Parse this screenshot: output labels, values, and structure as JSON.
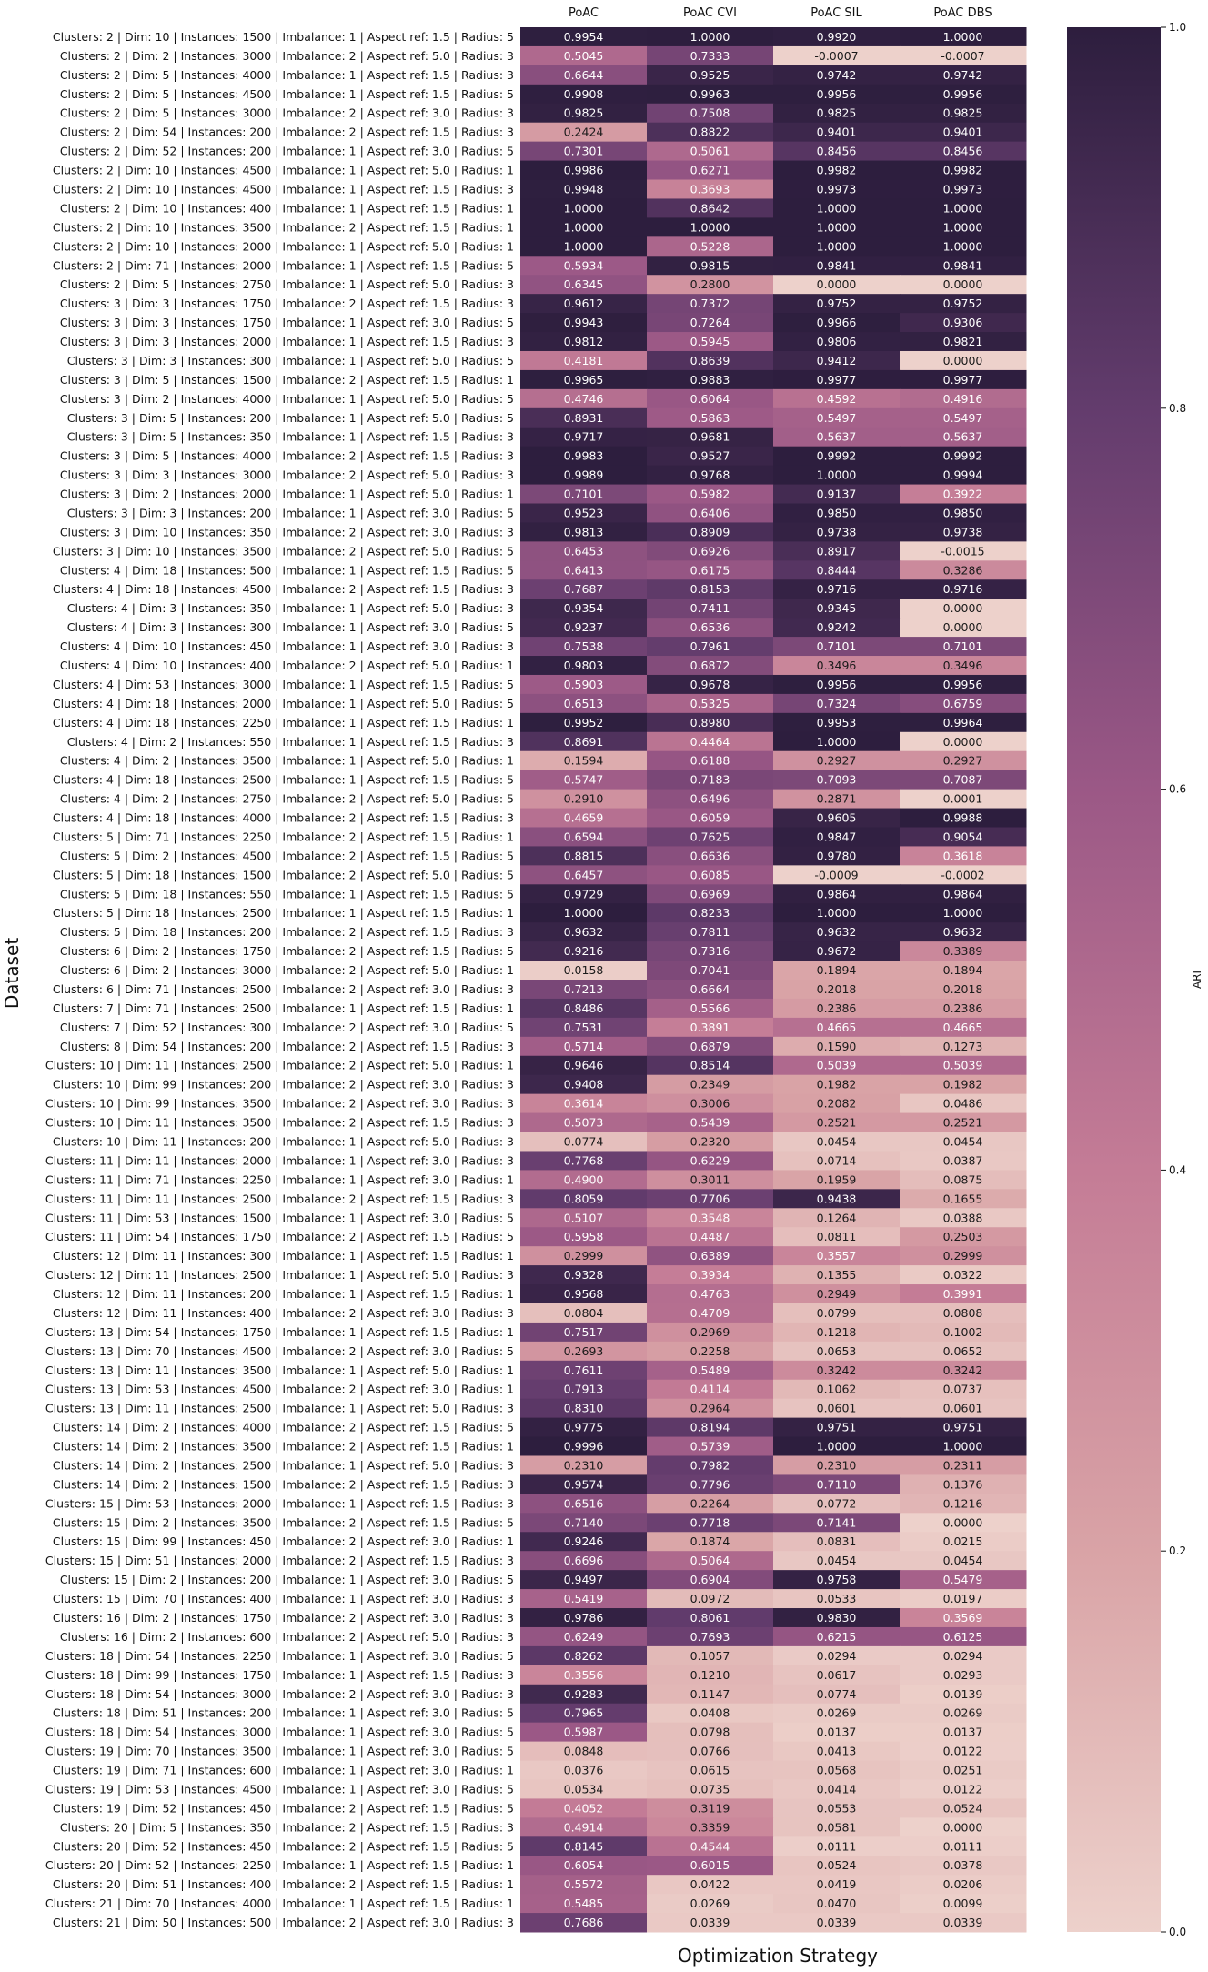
{
  "chart_data": {
    "type": "heatmap",
    "xlabel": "Optimization Strategy",
    "ylabel": "Dataset",
    "columns": [
      "PoAC",
      "PoAC CVI",
      "PoAC SIL",
      "PoAC DBS"
    ],
    "colorbar": {
      "label": "ARI",
      "range": [
        0.0,
        1.0
      ],
      "ticks": [
        "0.0",
        "0.2",
        "0.4",
        "0.6",
        "0.8",
        "1.0"
      ],
      "color_low": "#EDD1CB",
      "color_high": "#2D1E3E"
    },
    "rows": [
      "Clusters: 2 | Dim: 10 | Instances: 1500 | Imbalance: 1 | Aspect ref: 1.5 | Radius: 5",
      "Clusters: 2 | Dim: 2 | Instances: 3000 | Imbalance: 2 | Aspect ref: 5.0 | Radius: 3",
      "Clusters: 2 | Dim: 5 | Instances: 4000 | Imbalance: 1 | Aspect ref: 1.5 | Radius: 3",
      "Clusters: 2 | Dim: 5 | Instances: 4500 | Imbalance: 1 | Aspect ref: 1.5 | Radius: 5",
      "Clusters: 2 | Dim: 5 | Instances: 3000 | Imbalance: 2 | Aspect ref: 3.0 | Radius: 3",
      "Clusters: 2 | Dim: 54 | Instances: 200 | Imbalance: 2 | Aspect ref: 1.5 | Radius: 3",
      "Clusters: 2 | Dim: 52 | Instances: 200 | Imbalance: 1 | Aspect ref: 3.0 | Radius: 5",
      "Clusters: 2 | Dim: 10 | Instances: 4500 | Imbalance: 1 | Aspect ref: 5.0 | Radius: 1",
      "Clusters: 2 | Dim: 10 | Instances: 4500 | Imbalance: 1 | Aspect ref: 1.5 | Radius: 3",
      "Clusters: 2 | Dim: 10 | Instances: 400 | Imbalance: 1 | Aspect ref: 1.5 | Radius: 1",
      "Clusters: 2 | Dim: 10 | Instances: 3500 | Imbalance: 2 | Aspect ref: 1.5 | Radius: 1",
      "Clusters: 2 | Dim: 10 | Instances: 2000 | Imbalance: 1 | Aspect ref: 5.0 | Radius: 1",
      "Clusters: 2 | Dim: 71 | Instances: 2000 | Imbalance: 1 | Aspect ref: 1.5 | Radius: 5",
      "Clusters: 2 | Dim: 5 | Instances: 2750 | Imbalance: 1 | Aspect ref: 5.0 | Radius: 3",
      "Clusters: 3 | Dim: 3 | Instances: 1750 | Imbalance: 2 | Aspect ref: 1.5 | Radius: 3",
      "Clusters: 3 | Dim: 3 | Instances: 1750 | Imbalance: 1 | Aspect ref: 3.0 | Radius: 5",
      "Clusters: 3 | Dim: 3 | Instances: 2000 | Imbalance: 1 | Aspect ref: 1.5 | Radius: 3",
      "Clusters: 3 | Dim: 3 | Instances: 300 | Imbalance: 1 | Aspect ref: 5.0 | Radius: 5",
      "Clusters: 3 | Dim: 5 | Instances: 1500 | Imbalance: 2 | Aspect ref: 1.5 | Radius: 1",
      "Clusters: 3 | Dim: 2 | Instances: 4000 | Imbalance: 1 | Aspect ref: 5.0 | Radius: 5",
      "Clusters: 3 | Dim: 5 | Instances: 200 | Imbalance: 1 | Aspect ref: 5.0 | Radius: 5",
      "Clusters: 3 | Dim: 5 | Instances: 350 | Imbalance: 1 | Aspect ref: 1.5 | Radius: 3",
      "Clusters: 3 | Dim: 5 | Instances: 4000 | Imbalance: 2 | Aspect ref: 1.5 | Radius: 3",
      "Clusters: 3 | Dim: 3 | Instances: 3000 | Imbalance: 2 | Aspect ref: 5.0 | Radius: 3",
      "Clusters: 3 | Dim: 2 | Instances: 2000 | Imbalance: 1 | Aspect ref: 5.0 | Radius: 1",
      "Clusters: 3 | Dim: 3 | Instances: 200 | Imbalance: 1 | Aspect ref: 3.0 | Radius: 5",
      "Clusters: 3 | Dim: 10 | Instances: 350 | Imbalance: 2 | Aspect ref: 3.0 | Radius: 3",
      "Clusters: 3 | Dim: 10 | Instances: 3500 | Imbalance: 2 | Aspect ref: 5.0 | Radius: 5",
      "Clusters: 4 | Dim: 18 | Instances: 500 | Imbalance: 1 | Aspect ref: 1.5 | Radius: 5",
      "Clusters: 4 | Dim: 18 | Instances: 4500 | Imbalance: 2 | Aspect ref: 1.5 | Radius: 3",
      "Clusters: 4 | Dim: 3 | Instances: 350 | Imbalance: 1 | Aspect ref: 5.0 | Radius: 3",
      "Clusters: 4 | Dim: 3 | Instances: 300 | Imbalance: 1 | Aspect ref: 3.0 | Radius: 5",
      "Clusters: 4 | Dim: 10 | Instances: 450 | Imbalance: 1 | Aspect ref: 3.0 | Radius: 3",
      "Clusters: 4 | Dim: 10 | Instances: 400 | Imbalance: 2 | Aspect ref: 5.0 | Radius: 1",
      "Clusters: 4 | Dim: 53 | Instances: 3000 | Imbalance: 1 | Aspect ref: 1.5 | Radius: 5",
      "Clusters: 4 | Dim: 18 | Instances: 2000 | Imbalance: 1 | Aspect ref: 5.0 | Radius: 5",
      "Clusters: 4 | Dim: 18 | Instances: 2250 | Imbalance: 1 | Aspect ref: 1.5 | Radius: 1",
      "Clusters: 4 | Dim: 2 | Instances: 550 | Imbalance: 1 | Aspect ref: 1.5 | Radius: 3",
      "Clusters: 4 | Dim: 2 | Instances: 3500 | Imbalance: 1 | Aspect ref: 5.0 | Radius: 1",
      "Clusters: 4 | Dim: 18 | Instances: 2500 | Imbalance: 1 | Aspect ref: 1.5 | Radius: 5",
      "Clusters: 4 | Dim: 2 | Instances: 2750 | Imbalance: 2 | Aspect ref: 5.0 | Radius: 5",
      "Clusters: 4 | Dim: 18 | Instances: 4000 | Imbalance: 2 | Aspect ref: 1.5 | Radius: 3",
      "Clusters: 5 | Dim: 71 | Instances: 2250 | Imbalance: 2 | Aspect ref: 1.5 | Radius: 1",
      "Clusters: 5 | Dim: 2 | Instances: 4500 | Imbalance: 2 | Aspect ref: 1.5 | Radius: 5",
      "Clusters: 5 | Dim: 18 | Instances: 1500 | Imbalance: 2 | Aspect ref: 5.0 | Radius: 5",
      "Clusters: 5 | Dim: 18 | Instances: 550 | Imbalance: 1 | Aspect ref: 1.5 | Radius: 5",
      "Clusters: 5 | Dim: 18 | Instances: 2500 | Imbalance: 1 | Aspect ref: 1.5 | Radius: 1",
      "Clusters: 5 | Dim: 18 | Instances: 200 | Imbalance: 2 | Aspect ref: 1.5 | Radius: 3",
      "Clusters: 6 | Dim: 2 | Instances: 1750 | Imbalance: 2 | Aspect ref: 1.5 | Radius: 5",
      "Clusters: 6 | Dim: 2 | Instances: 3000 | Imbalance: 2 | Aspect ref: 5.0 | Radius: 1",
      "Clusters: 6 | Dim: 71 | Instances: 2500 | Imbalance: 2 | Aspect ref: 3.0 | Radius: 3",
      "Clusters: 7 | Dim: 71 | Instances: 2500 | Imbalance: 1 | Aspect ref: 1.5 | Radius: 1",
      "Clusters: 7 | Dim: 52 | Instances: 300 | Imbalance: 2 | Aspect ref: 3.0 | Radius: 5",
      "Clusters: 8 | Dim: 54 | Instances: 200 | Imbalance: 2 | Aspect ref: 1.5 | Radius: 3",
      "Clusters: 10 | Dim: 11 | Instances: 2500 | Imbalance: 2 | Aspect ref: 5.0 | Radius: 1",
      "Clusters: 10 | Dim: 99 | Instances: 200 | Imbalance: 2 | Aspect ref: 3.0 | Radius: 3",
      "Clusters: 10 | Dim: 99 | Instances: 3500 | Imbalance: 2 | Aspect ref: 3.0 | Radius: 3",
      "Clusters: 10 | Dim: 11 | Instances: 3500 | Imbalance: 2 | Aspect ref: 1.5 | Radius: 3",
      "Clusters: 10 | Dim: 11 | Instances: 200 | Imbalance: 1 | Aspect ref: 5.0 | Radius: 3",
      "Clusters: 11 | Dim: 11 | Instances: 2000 | Imbalance: 1 | Aspect ref: 3.0 | Radius: 3",
      "Clusters: 11 | Dim: 71 | Instances: 2250 | Imbalance: 1 | Aspect ref: 3.0 | Radius: 1",
      "Clusters: 11 | Dim: 11 | Instances: 2500 | Imbalance: 2 | Aspect ref: 1.5 | Radius: 3",
      "Clusters: 11 | Dim: 53 | Instances: 1500 | Imbalance: 1 | Aspect ref: 3.0 | Radius: 5",
      "Clusters: 11 | Dim: 54 | Instances: 1750 | Imbalance: 2 | Aspect ref: 1.5 | Radius: 5",
      "Clusters: 12 | Dim: 11 | Instances: 300 | Imbalance: 1 | Aspect ref: 1.5 | Radius: 1",
      "Clusters: 12 | Dim: 11 | Instances: 2500 | Imbalance: 1 | Aspect ref: 5.0 | Radius: 3",
      "Clusters: 12 | Dim: 11 | Instances: 200 | Imbalance: 1 | Aspect ref: 1.5 | Radius: 1",
      "Clusters: 12 | Dim: 11 | Instances: 400 | Imbalance: 2 | Aspect ref: 3.0 | Radius: 3",
      "Clusters: 13 | Dim: 54 | Instances: 1750 | Imbalance: 1 | Aspect ref: 1.5 | Radius: 1",
      "Clusters: 13 | Dim: 70 | Instances: 4500 | Imbalance: 2 | Aspect ref: 3.0 | Radius: 5",
      "Clusters: 13 | Dim: 11 | Instances: 3500 | Imbalance: 1 | Aspect ref: 5.0 | Radius: 1",
      "Clusters: 13 | Dim: 53 | Instances: 4500 | Imbalance: 2 | Aspect ref: 3.0 | Radius: 1",
      "Clusters: 13 | Dim: 11 | Instances: 2500 | Imbalance: 1 | Aspect ref: 5.0 | Radius: 3",
      "Clusters: 14 | Dim: 2 | Instances: 4000 | Imbalance: 2 | Aspect ref: 1.5 | Radius: 5",
      "Clusters: 14 | Dim: 2 | Instances: 3500 | Imbalance: 2 | Aspect ref: 1.5 | Radius: 1",
      "Clusters: 14 | Dim: 2 | Instances: 2500 | Imbalance: 1 | Aspect ref: 5.0 | Radius: 3",
      "Clusters: 14 | Dim: 2 | Instances: 1500 | Imbalance: 2 | Aspect ref: 1.5 | Radius: 3",
      "Clusters: 15 | Dim: 53 | Instances: 2000 | Imbalance: 1 | Aspect ref: 1.5 | Radius: 3",
      "Clusters: 15 | Dim: 2 | Instances: 3500 | Imbalance: 2 | Aspect ref: 1.5 | Radius: 5",
      "Clusters: 15 | Dim: 99 | Instances: 450 | Imbalance: 2 | Aspect ref: 3.0 | Radius: 1",
      "Clusters: 15 | Dim: 51 | Instances: 2000 | Imbalance: 2 | Aspect ref: 1.5 | Radius: 3",
      "Clusters: 15 | Dim: 2 | Instances: 200 | Imbalance: 1 | Aspect ref: 3.0 | Radius: 5",
      "Clusters: 15 | Dim: 70 | Instances: 400 | Imbalance: 1 | Aspect ref: 3.0 | Radius: 3",
      "Clusters: 16 | Dim: 2 | Instances: 1750 | Imbalance: 2 | Aspect ref: 3.0 | Radius: 3",
      "Clusters: 16 | Dim: 2 | Instances: 600 | Imbalance: 2 | Aspect ref: 5.0 | Radius: 3",
      "Clusters: 18 | Dim: 54 | Instances: 2250 | Imbalance: 1 | Aspect ref: 3.0 | Radius: 5",
      "Clusters: 18 | Dim: 99 | Instances: 1750 | Imbalance: 1 | Aspect ref: 1.5 | Radius: 3",
      "Clusters: 18 | Dim: 54 | Instances: 3000 | Imbalance: 2 | Aspect ref: 3.0 | Radius: 3",
      "Clusters: 18 | Dim: 51 | Instances: 200 | Imbalance: 1 | Aspect ref: 3.0 | Radius: 5",
      "Clusters: 18 | Dim: 54 | Instances: 3000 | Imbalance: 1 | Aspect ref: 3.0 | Radius: 5",
      "Clusters: 19 | Dim: 70 | Instances: 3500 | Imbalance: 1 | Aspect ref: 3.0 | Radius: 5",
      "Clusters: 19 | Dim: 71 | Instances: 600 | Imbalance: 1 | Aspect ref: 3.0 | Radius: 1",
      "Clusters: 19 | Dim: 53 | Instances: 4500 | Imbalance: 1 | Aspect ref: 3.0 | Radius: 5",
      "Clusters: 19 | Dim: 52 | Instances: 450 | Imbalance: 2 | Aspect ref: 1.5 | Radius: 5",
      "Clusters: 20 | Dim: 5 | Instances: 350 | Imbalance: 2 | Aspect ref: 1.5 | Radius: 3",
      "Clusters: 20 | Dim: 52 | Instances: 450 | Imbalance: 2 | Aspect ref: 1.5 | Radius: 5",
      "Clusters: 20 | Dim: 52 | Instances: 2250 | Imbalance: 1 | Aspect ref: 1.5 | Radius: 1",
      "Clusters: 20 | Dim: 51 | Instances: 400 | Imbalance: 2 | Aspect ref: 1.5 | Radius: 1",
      "Clusters: 21 | Dim: 70 | Instances: 4000 | Imbalance: 1 | Aspect ref: 1.5 | Radius: 1",
      "Clusters: 21 | Dim: 50 | Instances: 500 | Imbalance: 2 | Aspect ref: 3.0 | Radius: 3"
    ],
    "values": [
      [
        "0.9954",
        "1.0000",
        "0.9920",
        "1.0000"
      ],
      [
        "0.5045",
        "0.7333",
        "-0.0007",
        "-0.0007"
      ],
      [
        "0.6644",
        "0.9525",
        "0.9742",
        "0.9742"
      ],
      [
        "0.9908",
        "0.9963",
        "0.9956",
        "0.9956"
      ],
      [
        "0.9825",
        "0.7508",
        "0.9825",
        "0.9825"
      ],
      [
        "0.2424",
        "0.8822",
        "0.9401",
        "0.9401"
      ],
      [
        "0.7301",
        "0.5061",
        "0.8456",
        "0.8456"
      ],
      [
        "0.9986",
        "0.6271",
        "0.9982",
        "0.9982"
      ],
      [
        "0.9948",
        "0.3693",
        "0.9973",
        "0.9973"
      ],
      [
        "1.0000",
        "0.8642",
        "1.0000",
        "1.0000"
      ],
      [
        "1.0000",
        "1.0000",
        "1.0000",
        "1.0000"
      ],
      [
        "1.0000",
        "0.5228",
        "1.0000",
        "1.0000"
      ],
      [
        "0.5934",
        "0.9815",
        "0.9841",
        "0.9841"
      ],
      [
        "0.6345",
        "0.2800",
        "0.0000",
        "0.0000"
      ],
      [
        "0.9612",
        "0.7372",
        "0.9752",
        "0.9752"
      ],
      [
        "0.9943",
        "0.7264",
        "0.9966",
        "0.9306"
      ],
      [
        "0.9812",
        "0.5945",
        "0.9806",
        "0.9821"
      ],
      [
        "0.4181",
        "0.8639",
        "0.9412",
        "0.0000"
      ],
      [
        "0.9965",
        "0.9883",
        "0.9977",
        "0.9977"
      ],
      [
        "0.4746",
        "0.6064",
        "0.4592",
        "0.4916"
      ],
      [
        "0.8931",
        "0.5863",
        "0.5497",
        "0.5497"
      ],
      [
        "0.9717",
        "0.9681",
        "0.5637",
        "0.5637"
      ],
      [
        "0.9983",
        "0.9527",
        "0.9992",
        "0.9992"
      ],
      [
        "0.9989",
        "0.9768",
        "1.0000",
        "0.9994"
      ],
      [
        "0.7101",
        "0.5982",
        "0.9137",
        "0.3922"
      ],
      [
        "0.9523",
        "0.6406",
        "0.9850",
        "0.9850"
      ],
      [
        "0.9813",
        "0.8909",
        "0.9738",
        "0.9738"
      ],
      [
        "0.6453",
        "0.6926",
        "0.8917",
        "-0.0015"
      ],
      [
        "0.6413",
        "0.6175",
        "0.8444",
        "0.3286"
      ],
      [
        "0.7687",
        "0.8153",
        "0.9716",
        "0.9716"
      ],
      [
        "0.9354",
        "0.7411",
        "0.9345",
        "0.0000"
      ],
      [
        "0.9237",
        "0.6536",
        "0.9242",
        "0.0000"
      ],
      [
        "0.7538",
        "0.7961",
        "0.7101",
        "0.7101"
      ],
      [
        "0.9803",
        "0.6872",
        "0.3496",
        "0.3496"
      ],
      [
        "0.5903",
        "0.9678",
        "0.9956",
        "0.9956"
      ],
      [
        "0.6513",
        "0.5325",
        "0.7324",
        "0.6759"
      ],
      [
        "0.9952",
        "0.8980",
        "0.9953",
        "0.9964"
      ],
      [
        "0.8691",
        "0.4464",
        "1.0000",
        "0.0000"
      ],
      [
        "0.1594",
        "0.6188",
        "0.2927",
        "0.2927"
      ],
      [
        "0.5747",
        "0.7183",
        "0.7093",
        "0.7087"
      ],
      [
        "0.2910",
        "0.6496",
        "0.2871",
        "0.0001"
      ],
      [
        "0.4659",
        "0.6059",
        "0.9605",
        "0.9988"
      ],
      [
        "0.6594",
        "0.7625",
        "0.9847",
        "0.9054"
      ],
      [
        "0.8815",
        "0.6636",
        "0.9780",
        "0.3618"
      ],
      [
        "0.6457",
        "0.6085",
        "-0.0009",
        "-0.0002"
      ],
      [
        "0.9729",
        "0.6969",
        "0.9864",
        "0.9864"
      ],
      [
        "1.0000",
        "0.8233",
        "1.0000",
        "1.0000"
      ],
      [
        "0.9632",
        "0.7811",
        "0.9632",
        "0.9632"
      ],
      [
        "0.9216",
        "0.7316",
        "0.9672",
        "0.3389"
      ],
      [
        "0.0158",
        "0.7041",
        "0.1894",
        "0.1894"
      ],
      [
        "0.7213",
        "0.6664",
        "0.2018",
        "0.2018"
      ],
      [
        "0.8486",
        "0.5566",
        "0.2386",
        "0.2386"
      ],
      [
        "0.7531",
        "0.3891",
        "0.4665",
        "0.4665"
      ],
      [
        "0.5714",
        "0.6879",
        "0.1590",
        "0.1273"
      ],
      [
        "0.9646",
        "0.8514",
        "0.5039",
        "0.5039"
      ],
      [
        "0.9408",
        "0.2349",
        "0.1982",
        "0.1982"
      ],
      [
        "0.3614",
        "0.3006",
        "0.2082",
        "0.0486"
      ],
      [
        "0.5073",
        "0.5439",
        "0.2521",
        "0.2521"
      ],
      [
        "0.0774",
        "0.2320",
        "0.0454",
        "0.0454"
      ],
      [
        "0.7768",
        "0.6229",
        "0.0714",
        "0.0387"
      ],
      [
        "0.4900",
        "0.3011",
        "0.1959",
        "0.0875"
      ],
      [
        "0.8059",
        "0.7706",
        "0.9438",
        "0.1655"
      ],
      [
        "0.5107",
        "0.3548",
        "0.1264",
        "0.0388"
      ],
      [
        "0.5958",
        "0.4487",
        "0.0811",
        "0.2503"
      ],
      [
        "0.2999",
        "0.6389",
        "0.3557",
        "0.2999"
      ],
      [
        "0.9328",
        "0.3934",
        "0.1355",
        "0.0322"
      ],
      [
        "0.9568",
        "0.4763",
        "0.2949",
        "0.3991"
      ],
      [
        "0.0804",
        "0.4709",
        "0.0799",
        "0.0808"
      ],
      [
        "0.7517",
        "0.2969",
        "0.1218",
        "0.1002"
      ],
      [
        "0.2693",
        "0.2258",
        "0.0653",
        "0.0652"
      ],
      [
        "0.7611",
        "0.5489",
        "0.3242",
        "0.3242"
      ],
      [
        "0.7913",
        "0.4114",
        "0.1062",
        "0.0737"
      ],
      [
        "0.8310",
        "0.2964",
        "0.0601",
        "0.0601"
      ],
      [
        "0.9775",
        "0.8194",
        "0.9751",
        "0.9751"
      ],
      [
        "0.9996",
        "0.5739",
        "1.0000",
        "1.0000"
      ],
      [
        "0.2310",
        "0.7982",
        "0.2310",
        "0.2311"
      ],
      [
        "0.9574",
        "0.7796",
        "0.7110",
        "0.1376"
      ],
      [
        "0.6516",
        "0.2264",
        "0.0772",
        "0.1216"
      ],
      [
        "0.7140",
        "0.7718",
        "0.7141",
        "0.0000"
      ],
      [
        "0.9246",
        "0.1874",
        "0.0831",
        "0.0215"
      ],
      [
        "0.6696",
        "0.5064",
        "0.0454",
        "0.0454"
      ],
      [
        "0.9497",
        "0.6904",
        "0.9758",
        "0.5479"
      ],
      [
        "0.5419",
        "0.0972",
        "0.0533",
        "0.0197"
      ],
      [
        "0.9786",
        "0.8061",
        "0.9830",
        "0.3569"
      ],
      [
        "0.6249",
        "0.7693",
        "0.6215",
        "0.6125"
      ],
      [
        "0.8262",
        "0.1057",
        "0.0294",
        "0.0294"
      ],
      [
        "0.3556",
        "0.1210",
        "0.0617",
        "0.0293"
      ],
      [
        "0.9283",
        "0.1147",
        "0.0774",
        "0.0139"
      ],
      [
        "0.7965",
        "0.0408",
        "0.0269",
        "0.0269"
      ],
      [
        "0.5987",
        "0.0798",
        "0.0137",
        "0.0137"
      ],
      [
        "0.0848",
        "0.0766",
        "0.0413",
        "0.0122"
      ],
      [
        "0.0376",
        "0.0615",
        "0.0568",
        "0.0251"
      ],
      [
        "0.0534",
        "0.0735",
        "0.0414",
        "0.0122"
      ],
      [
        "0.4052",
        "0.3119",
        "0.0553",
        "0.0524"
      ],
      [
        "0.4914",
        "0.3359",
        "0.0581",
        "0.0000"
      ],
      [
        "0.8145",
        "0.4544",
        "0.0111",
        "0.0111"
      ],
      [
        "0.6054",
        "0.6015",
        "0.0524",
        "0.0378"
      ],
      [
        "0.5572",
        "0.0422",
        "0.0419",
        "0.0206"
      ],
      [
        "0.5485",
        "0.0269",
        "0.0470",
        "0.0099"
      ],
      [
        "0.7686",
        "0.0339",
        "0.0339",
        "0.0339"
      ]
    ]
  }
}
